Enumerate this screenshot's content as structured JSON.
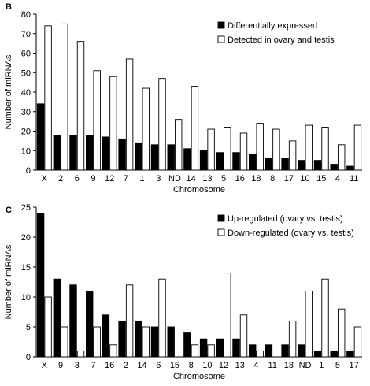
{
  "chart_data": [
    {
      "panel_label": "B",
      "type": "bar",
      "ylabel": "Number of miRNAs",
      "xlabel": "Chromosome",
      "ylim": [
        0,
        80
      ],
      "yticks": [
        0,
        10,
        20,
        30,
        40,
        50,
        60,
        70,
        80
      ],
      "categories": [
        "X",
        "2",
        "6",
        "9",
        "12",
        "7",
        "1",
        "3",
        "ND",
        "14",
        "13",
        "5",
        "16",
        "18",
        "8",
        "17",
        "10",
        "15",
        "4",
        "11"
      ],
      "series": [
        {
          "name": "Differentially expressed",
          "color": "#000000",
          "values": [
            34,
            18,
            18,
            18,
            17,
            16,
            14,
            13,
            13,
            11,
            10,
            9,
            9,
            8,
            6,
            6,
            5,
            5,
            3,
            2
          ]
        },
        {
          "name": "Detected in ovary and testis",
          "color": "#ffffff",
          "values": [
            74,
            75,
            66,
            51,
            48,
            57,
            42,
            47,
            26,
            43,
            21,
            22,
            19,
            24,
            21,
            15,
            23,
            22,
            13,
            23
          ]
        }
      ],
      "legend_position": "top-right",
      "grid": false
    },
    {
      "panel_label": "C",
      "type": "bar",
      "ylabel": "Number of miRNAs",
      "xlabel": "Chromosome",
      "ylim": [
        0,
        25
      ],
      "yticks": [
        0,
        5,
        10,
        15,
        20,
        25
      ],
      "categories": [
        "X",
        "9",
        "3",
        "7",
        "16",
        "2",
        "14",
        "6",
        "15",
        "8",
        "10",
        "12",
        "13",
        "4",
        "11",
        "18",
        "ND",
        "1",
        "5",
        "17"
      ],
      "series": [
        {
          "name": "Up-regulated (ovary vs. testis)",
          "color": "#000000",
          "values": [
            24,
            13,
            12,
            11,
            7,
            6,
            6,
            5,
            5,
            4,
            3,
            3,
            3,
            2,
            2,
            2,
            2,
            1,
            1,
            1
          ]
        },
        {
          "name": "Down-regulated (ovary vs. testis)",
          "color": "#ffffff",
          "values": [
            10,
            5,
            1,
            5,
            2,
            12,
            5,
            13,
            0,
            2,
            2,
            14,
            7,
            1,
            0,
            6,
            11,
            13,
            8,
            5
          ]
        }
      ],
      "legend_position": "top-right",
      "grid": false
    }
  ]
}
